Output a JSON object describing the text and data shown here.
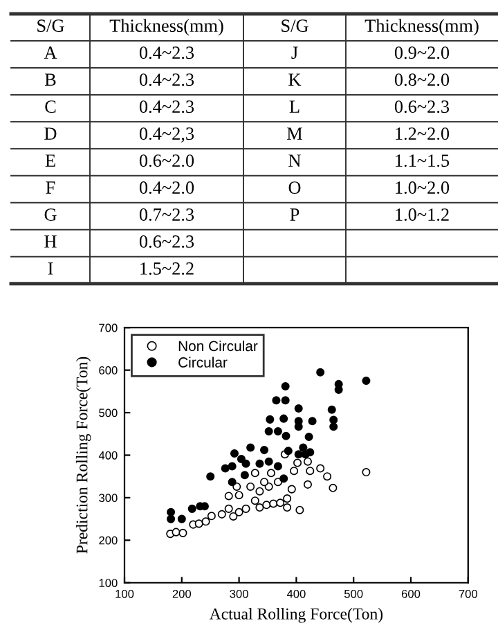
{
  "chart_data": [
    {
      "type": "other",
      "annotations": [
        "S/G",
        "Thickness(mm)",
        "S/G",
        "Thickness(mm)",
        "A",
        "0.4~2.3",
        "B",
        "0.4~2.3",
        "C",
        "0.4~2.3",
        "D",
        "0.4~2,3",
        "E",
        "0.6~2.0",
        "F",
        "0.4~2.0",
        "G",
        "0.7~2.3",
        "H",
        "0.6~2.3",
        "I",
        "1.5~2.2",
        "J",
        "0.9~2.0",
        "K",
        "0.8~2.0",
        "L",
        "0.6~2.3",
        "M",
        "1.2~2.0",
        "N",
        "1.1~1.5",
        "O",
        "1.0~2.0",
        "P",
        "1.0~1.2"
      ]
    },
    {
      "type": "scatter",
      "xlabel": "Actual Rolling Force(Ton)",
      "ylabel": "Prediction Rolling Force(Ton)",
      "xlim": [
        100,
        700
      ],
      "ylim": [
        100,
        700
      ],
      "xticks": [
        100,
        200,
        300,
        400,
        500,
        600,
        700
      ],
      "yticks": [
        100,
        200,
        300,
        400,
        500,
        600,
        700
      ],
      "grid": false,
      "legend": "top left",
      "marker": "circle",
      "series": [
        {
          "name": "Non Circular",
          "color": "#ffffff",
          "x": [
            522,
            180,
            190,
            202,
            220,
            230,
            242,
            252,
            270,
            282,
            290,
            300,
            312,
            336,
            348,
            360,
            372,
            384,
            406,
            282,
            300,
            320,
            336,
            352,
            368,
            396,
            402,
            424,
            442,
            454,
            464,
            420,
            392,
            344,
            356,
            296,
            380,
            328,
            384,
            420,
            328
          ],
          "values": [
            360,
            215,
            219,
            217,
            237,
            239,
            244,
            257,
            261,
            274,
            256,
            266,
            274,
            277,
            283,
            286,
            288,
            277,
            271,
            304,
            306,
            326,
            315,
            326,
            337,
            363,
            382,
            363,
            369,
            350,
            323,
            331,
            320,
            337,
            358,
            326,
            402,
            293,
            298,
            385,
            358
          ]
        },
        {
          "name": "Circular",
          "color": "#000000",
          "x": [
            442,
            522,
            474,
            474,
            381,
            365,
            381,
            404,
            462,
            354,
            378,
            465,
            465,
            428,
            404,
            404,
            352,
            368,
            382,
            422,
            320,
            344,
            386,
            416,
            292,
            304,
            276,
            288,
            312,
            336,
            352,
            368,
            250,
            310,
            288,
            378,
            181,
            181,
            200,
            218,
            232,
            240,
            404,
            412,
            424
          ],
          "values": [
            595,
            575,
            567,
            554,
            562,
            529,
            529,
            510,
            507,
            484,
            486,
            483,
            467,
            480,
            480,
            467,
            456,
            456,
            445,
            443,
            418,
            412,
            410,
            402,
            404,
            391,
            369,
            374,
            380,
            380,
            385,
            374,
            350,
            353,
            337,
            345,
            266,
            250,
            250,
            274,
            280,
            280,
            402,
            418,
            407
          ]
        }
      ]
    }
  ]
}
